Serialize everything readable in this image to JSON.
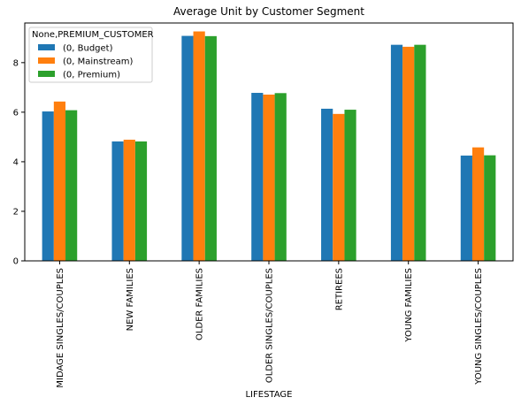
{
  "chart_data": {
    "type": "bar",
    "title": "Average Unit by Customer Segment",
    "xlabel": "LIFESTAGE",
    "ylabel": "",
    "ylim": [
      0,
      9.6
    ],
    "yticks": [
      0,
      2,
      4,
      6,
      8
    ],
    "legend": {
      "title": "None,PREMIUM_CUSTOMER",
      "placement": "top-left"
    },
    "categories": [
      "MIDAGE SINGLES/COUPLES",
      "NEW FAMILIES",
      "OLDER FAMILIES",
      "OLDER SINGLES/COUPLES",
      "RETIREES",
      "YOUNG FAMILIES",
      "YOUNG SINGLES/COUPLES"
    ],
    "series": [
      {
        "name": "(0, Budget)",
        "color": "#1f77b4",
        "values": [
          6.03,
          4.82,
          9.08,
          6.78,
          6.14,
          8.72,
          4.25
        ]
      },
      {
        "name": "(0, Mainstream)",
        "color": "#ff7f0e",
        "values": [
          6.43,
          4.89,
          9.26,
          6.71,
          5.93,
          8.64,
          4.58
        ]
      },
      {
        "name": "(0, Premium)",
        "color": "#2ca02c",
        "values": [
          6.08,
          4.82,
          9.07,
          6.77,
          6.1,
          8.72,
          4.26
        ]
      }
    ]
  }
}
